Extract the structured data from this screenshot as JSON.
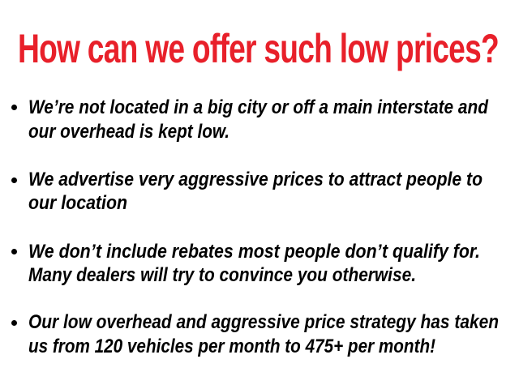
{
  "slide": {
    "title": "How can we offer such low prices?",
    "title_color": "#e8202a",
    "bullets": [
      {
        "lines": [
          "We’re not located in a big city or off a main interstate and",
          "our overhead is kept low."
        ]
      },
      {
        "lines": [
          "We advertise very aggressive prices to attract people to",
          "our location"
        ]
      },
      {
        "lines": [
          "We don’t include rebates most people don’t qualify for.",
          "Many dealers will try to convince you otherwise."
        ]
      },
      {
        "lines": [
          "Our low overhead and aggressive price strategy has taken",
          "us from 120 vehicles per month to 475+ per month!"
        ]
      }
    ]
  }
}
